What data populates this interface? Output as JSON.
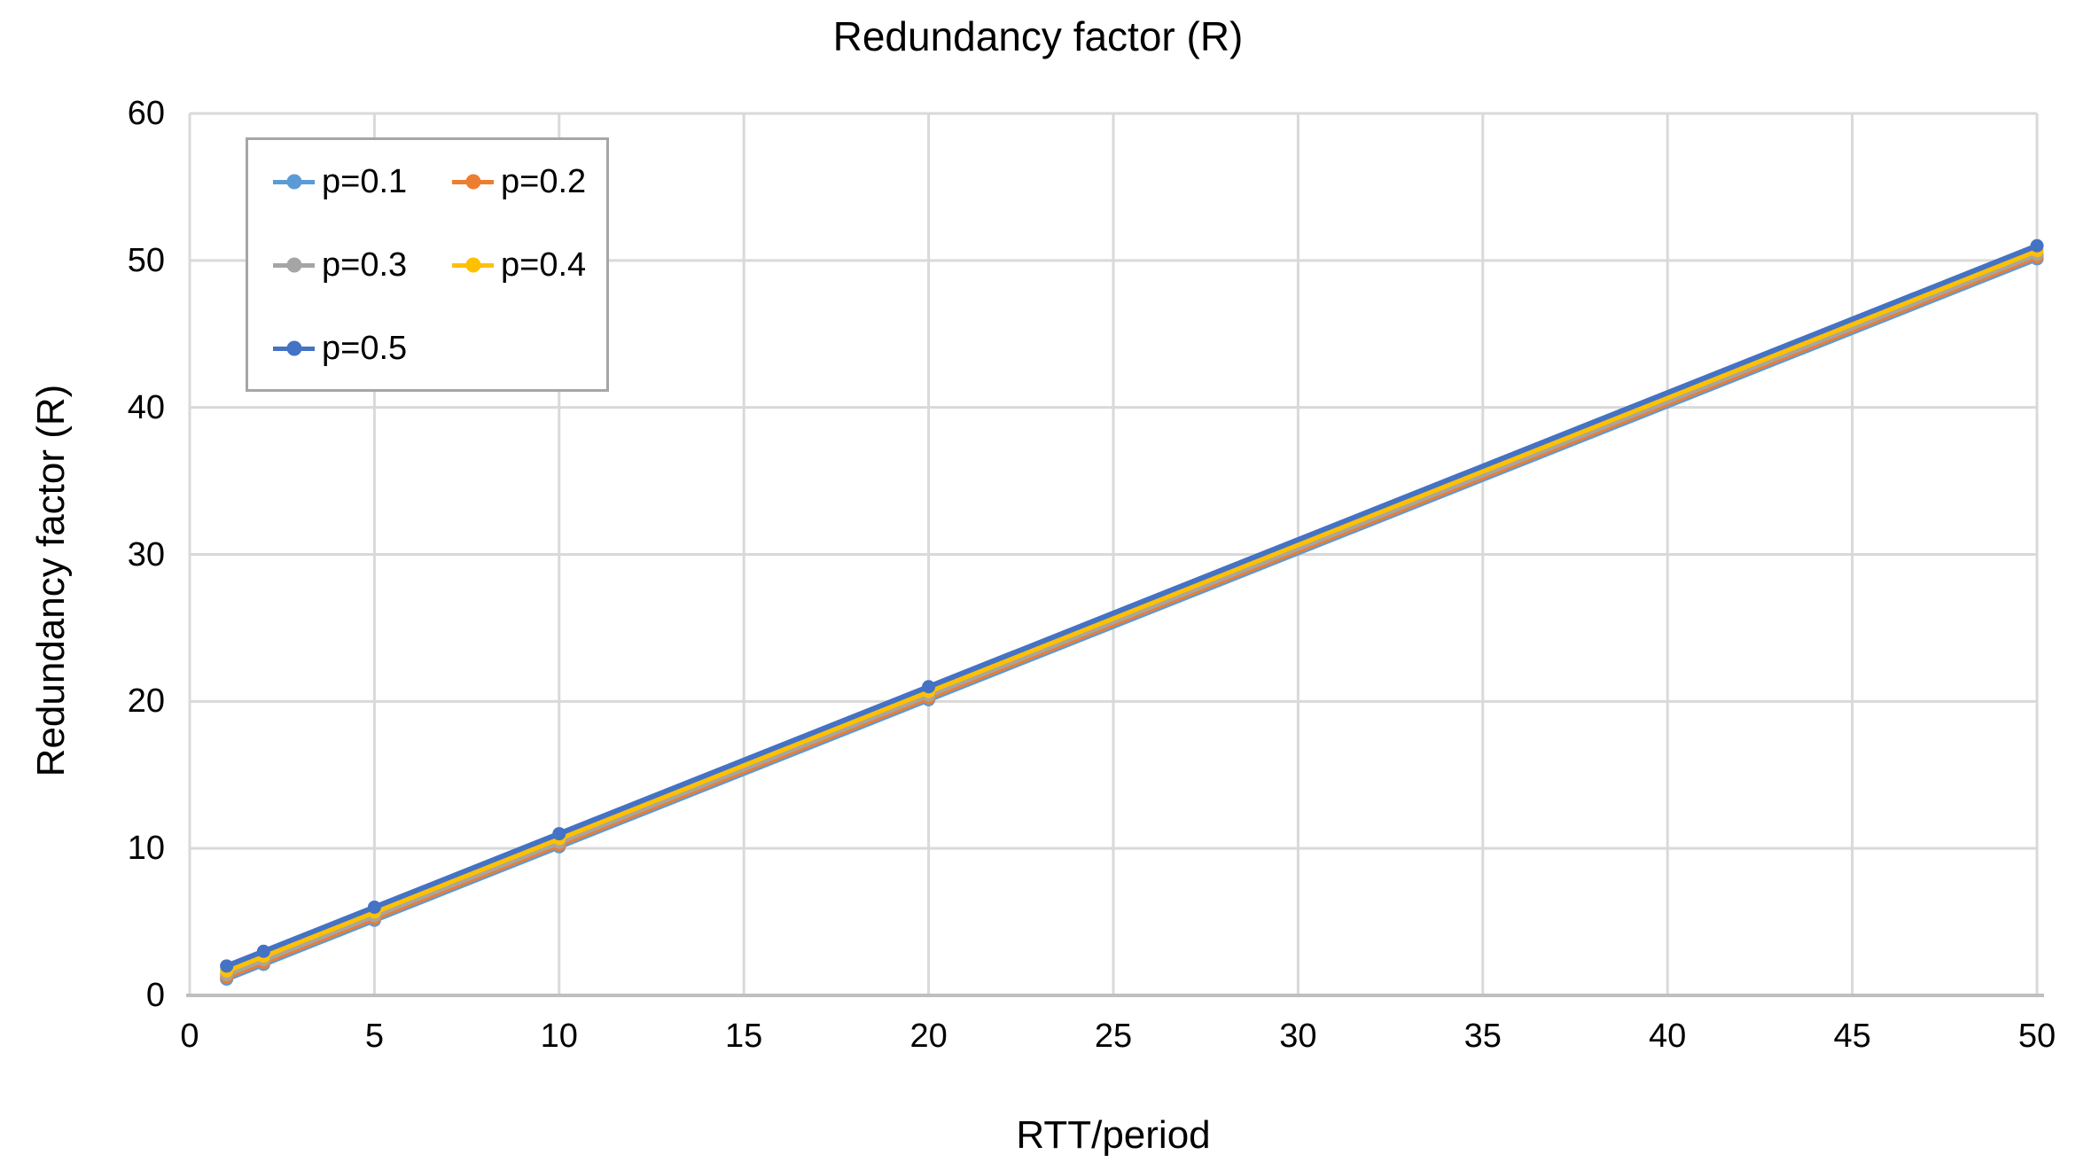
{
  "chart_data": {
    "type": "line",
    "title": "Redundancy factor (R)",
    "xlabel": "RTT/period",
    "ylabel": "Redundancy factor (R)",
    "x": [
      1,
      2,
      5,
      10,
      20,
      50
    ],
    "series": [
      {
        "name": "p=0.1",
        "color": "#5B9BD5",
        "values": [
          1.11,
          2.11,
          5.11,
          10.11,
          20.11,
          50.11
        ]
      },
      {
        "name": "p=0.2",
        "color": "#ED7D31",
        "values": [
          1.25,
          2.25,
          5.25,
          10.25,
          20.25,
          50.25
        ]
      },
      {
        "name": "p=0.3",
        "color": "#A5A5A5",
        "values": [
          1.43,
          2.43,
          5.43,
          10.43,
          20.43,
          50.43
        ]
      },
      {
        "name": "p=0.4",
        "color": "#FFC000",
        "values": [
          1.67,
          2.67,
          5.67,
          10.67,
          20.67,
          50.67
        ]
      },
      {
        "name": "p=0.5",
        "color": "#4472C4",
        "values": [
          2,
          3,
          6,
          11,
          21,
          51
        ]
      }
    ],
    "xlim": [
      0,
      50
    ],
    "ylim": [
      0,
      60
    ],
    "xticks": [
      0,
      5,
      10,
      15,
      20,
      25,
      30,
      35,
      40,
      45,
      50
    ],
    "yticks": [
      0,
      10,
      20,
      30,
      40,
      50,
      60
    ],
    "grid": true,
    "legend_position": "top-left",
    "marker": "circle"
  },
  "colors": {
    "background": "#FFFFFF",
    "gridline": "#D9D9D9",
    "axis_line": "#BFBFBF",
    "legend_border": "#A6A6A6",
    "text": "#000000"
  }
}
